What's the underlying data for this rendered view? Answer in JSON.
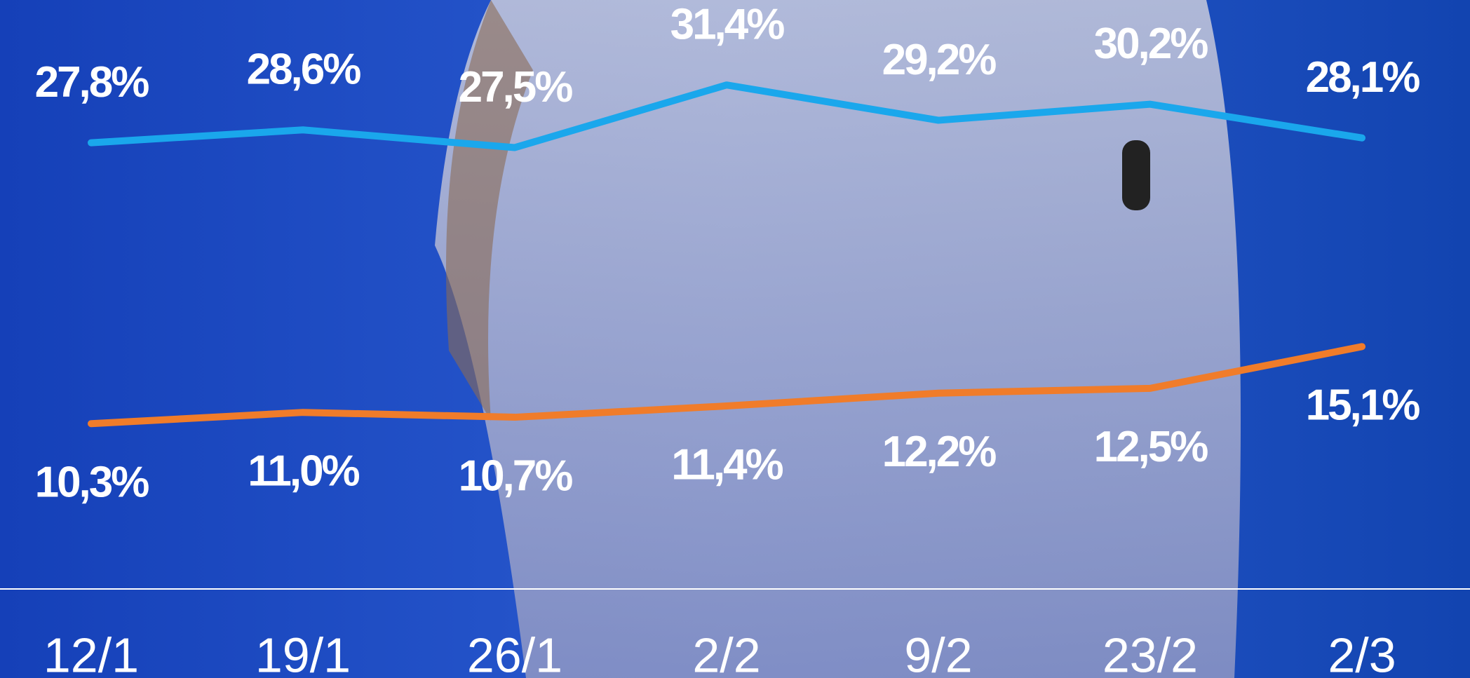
{
  "chart_data": {
    "type": "line",
    "categories": [
      "12/1",
      "19/1",
      "26/1",
      "2/2",
      "9/2",
      "23/2",
      "2/3"
    ],
    "series": [
      {
        "color": "#1aa7ec",
        "values": [
          27.8,
          28.6,
          27.5,
          31.4,
          29.2,
          30.2,
          28.1
        ],
        "value_labels": [
          "27,8%",
          "28,6%",
          "27,5%",
          "31,4%",
          "29,2%",
          "30,2%",
          "28,1%"
        ],
        "label_side": "above"
      },
      {
        "color": "#f07c2a",
        "values": [
          10.3,
          11.0,
          10.7,
          11.4,
          12.2,
          12.5,
          15.1
        ],
        "value_labels": [
          "10,3%",
          "11,0%",
          "10,7%",
          "11,4%",
          "12,2%",
          "12,5%",
          "15,1%"
        ],
        "label_side": "below"
      }
    ],
    "ylim": [
      0,
      37
    ]
  }
}
